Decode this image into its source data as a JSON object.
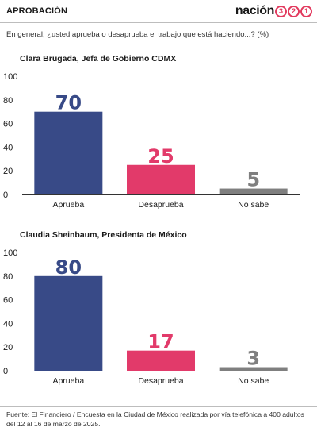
{
  "header": {
    "section": "APROBACIÓN",
    "brand_word": "nación",
    "brand_digits": [
      "3",
      "2",
      "1"
    ]
  },
  "question": "En general, ¿usted aprueba o desaprueba el trabajo que está haciendo...? (%)",
  "colors": {
    "aprueba": "#384a87",
    "desaprueba": "#e23a6a",
    "no_sabe": "#7f7f7f",
    "axis": "#333333"
  },
  "chart_data": [
    {
      "type": "bar",
      "title": "Clara Brugada, Jefa de Gobierno CDMX",
      "categories": [
        "Aprueba",
        "Desaprueba",
        "No sabe"
      ],
      "values": [
        70,
        25,
        5
      ],
      "value_labels": [
        "70",
        "25",
        "5"
      ],
      "ylim": [
        0,
        100
      ],
      "yticks": [
        "0",
        "20",
        "40",
        "60",
        "80",
        "100"
      ],
      "grid": false
    },
    {
      "type": "bar",
      "title": "Claudia Sheinbaum, Presidenta de México",
      "categories": [
        "Aprueba",
        "Desaprueba",
        "No sabe"
      ],
      "values": [
        80,
        17,
        3
      ],
      "value_labels": [
        "80",
        "17",
        "3"
      ],
      "ylim": [
        0,
        100
      ],
      "yticks": [
        "0",
        "20",
        "40",
        "60",
        "80",
        "100"
      ],
      "grid": false
    }
  ],
  "source": "Fuente: El Financiero / Encuesta en la Ciudad de México realizada por vía telefónica a 400 adultos del 12 al 16 de marzo de 2025."
}
